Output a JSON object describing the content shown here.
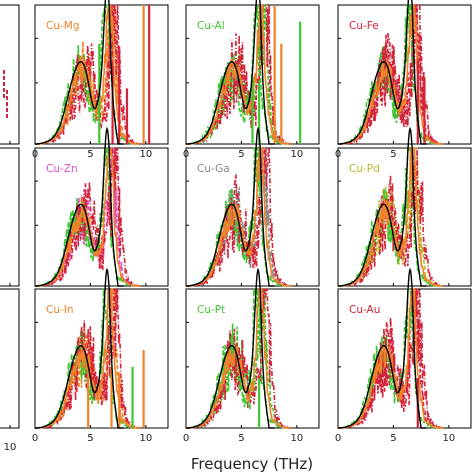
{
  "figure": {
    "xlabel": "Frequency (THz)",
    "left_partial_panel": {
      "tick_label": "10"
    }
  },
  "colors": {
    "reference": "#000000",
    "orange": "#f0832a",
    "green": "#3fc733",
    "red": "#d4233a",
    "magenta": "#e04fc9",
    "gray": "#888888",
    "olive": "#b8b82a"
  },
  "chart_data": [
    {
      "type": "line",
      "title": "Cu-Mg",
      "title_color": "#f0832a",
      "xlim": [
        0,
        12
      ],
      "xticks": [
        "0",
        "5",
        "10"
      ],
      "grid": false
    },
    {
      "type": "line",
      "title": "Cu-Al",
      "title_color": "#3fc733",
      "xlim": [
        0,
        12
      ],
      "xticks": [
        "0",
        "5",
        "10"
      ],
      "grid": false
    },
    {
      "type": "line",
      "title": "Cu-Fe",
      "title_color": "#d4233a",
      "xlim": [
        0,
        12
      ],
      "xticks": [
        "0",
        "5"
      ],
      "grid": false
    },
    {
      "type": "line",
      "title": "Cu-Zn",
      "title_color": "#e04fc9",
      "xlim": [
        0,
        12
      ],
      "xticks": [],
      "grid": false
    },
    {
      "type": "line",
      "title": "Cu-Ga",
      "title_color": "#888888",
      "xlim": [
        0,
        12
      ],
      "xticks": [],
      "grid": false
    },
    {
      "type": "line",
      "title": "Cu-Pd",
      "title_color": "#b8b82a",
      "xlim": [
        0,
        12
      ],
      "xticks": [],
      "grid": false
    },
    {
      "type": "line",
      "title": "Cu-In",
      "title_color": "#f0832a",
      "xlim": [
        0,
        12
      ],
      "xticks": [
        "0",
        "5",
        "10"
      ],
      "grid": false
    },
    {
      "type": "line",
      "title": "Cu-Pt",
      "title_color": "#3fc733",
      "xlim": [
        0,
        12
      ],
      "xticks": [
        "0",
        "5",
        "10"
      ],
      "grid": false
    },
    {
      "type": "line",
      "title": "Cu-Au",
      "title_color": "#d4233a",
      "xlim": [
        0,
        12
      ],
      "xticks": [
        "0",
        "5",
        "10"
      ],
      "grid": false
    }
  ]
}
